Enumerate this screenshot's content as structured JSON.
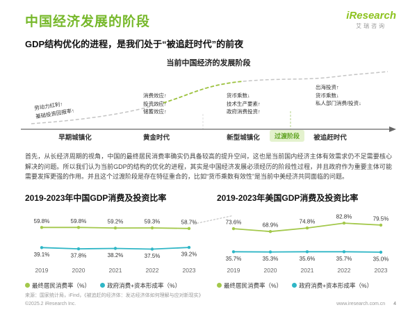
{
  "colors": {
    "brand_green": "#76B82A",
    "line_green": "#A3C84B",
    "line_teal": "#2FB6C6"
  },
  "header": {
    "title": "中国经济发展的阶段",
    "subtitle": "GDP结构优化的进程，是我们处于“被追赶时代”的前夜"
  },
  "logo": {
    "brand": "iResearch",
    "brand_cn": "艾瑞咨询"
  },
  "diagram": {
    "title": "当前中国经济的发展阶段",
    "stages": [
      {
        "name": "早期城镇化",
        "factors": [
          "劳动力红利↑",
          "基础投资回报率↑"
        ]
      },
      {
        "name": "黄金时代",
        "factors": [
          "消费效应↑",
          "投资效应↑",
          "储蓄效应↑"
        ]
      },
      {
        "name": "新型城镇化",
        "factors": [
          "货币乘数↓",
          "技术生产要素↑",
          "政府消费投资↑"
        ]
      },
      {
        "name": "被追赶时代",
        "factors": [
          "出海投资↑",
          "货币乘数↓",
          "私人部门消费/投资↓"
        ]
      }
    ],
    "transition_label": "过渡阶段"
  },
  "body_text": "首先，从长经济周期的视角，中国的最终居民消费率确实仍具备较高的提升空间，这也是当前国内经济主体有效需求仍不足需要核心解决的问题。所以我们认为当前GDP的结构的优化的进程，其实是中国经济发展必须经历的阶段性过程，并且政府作为重要主体可能需要发挥更强的作用。并且这个过渡阶段是存在特征重合的，比如“货币乘数有效性”是当前中美经济共同面临的问题。",
  "chart_data": [
    {
      "type": "line",
      "title": "2019-2023年中国GDP消费及投资比率",
      "categories": [
        "2019",
        "2020",
        "2021",
        "2022",
        "2023"
      ],
      "series": [
        {
          "name": "最终居民消费率（%）",
          "color": "#A3C84B",
          "values": [
            59.8,
            59.8,
            59.2,
            59.3,
            58.7
          ]
        },
        {
          "name": "政府消费+资本形成率（%）",
          "color": "#2FB6C6",
          "values": [
            39.1,
            37.8,
            38.2,
            37.5,
            39.2
          ]
        }
      ],
      "ylim": [
        30,
        70
      ],
      "legend_position": "bottom",
      "grid": false
    },
    {
      "type": "line",
      "title": "2019-2023年美国GDP消费及投资比率",
      "categories": [
        "2019",
        "2020",
        "2021",
        "2022",
        "2023"
      ],
      "series": [
        {
          "name": "最终居民消费率（%）",
          "color": "#A3C84B",
          "values": [
            73.6,
            68.9,
            74.8,
            82.8,
            79.5
          ]
        },
        {
          "name": "政府消费+资本形成率（%）",
          "color": "#2FB6C6",
          "values": [
            35.7,
            35.3,
            35.6,
            35.7,
            35.0
          ]
        }
      ],
      "ylim": [
        28,
        92
      ],
      "legend_position": "bottom",
      "grid": false
    }
  ],
  "footer": {
    "source": "来源：国家统计局，iFind，《被追赶的经济体：发达经济体如何理解与应对新现实》",
    "copyright": "©2025.2 iResearch Inc.",
    "site": "www.iresearch.com.cn",
    "page": "4"
  }
}
